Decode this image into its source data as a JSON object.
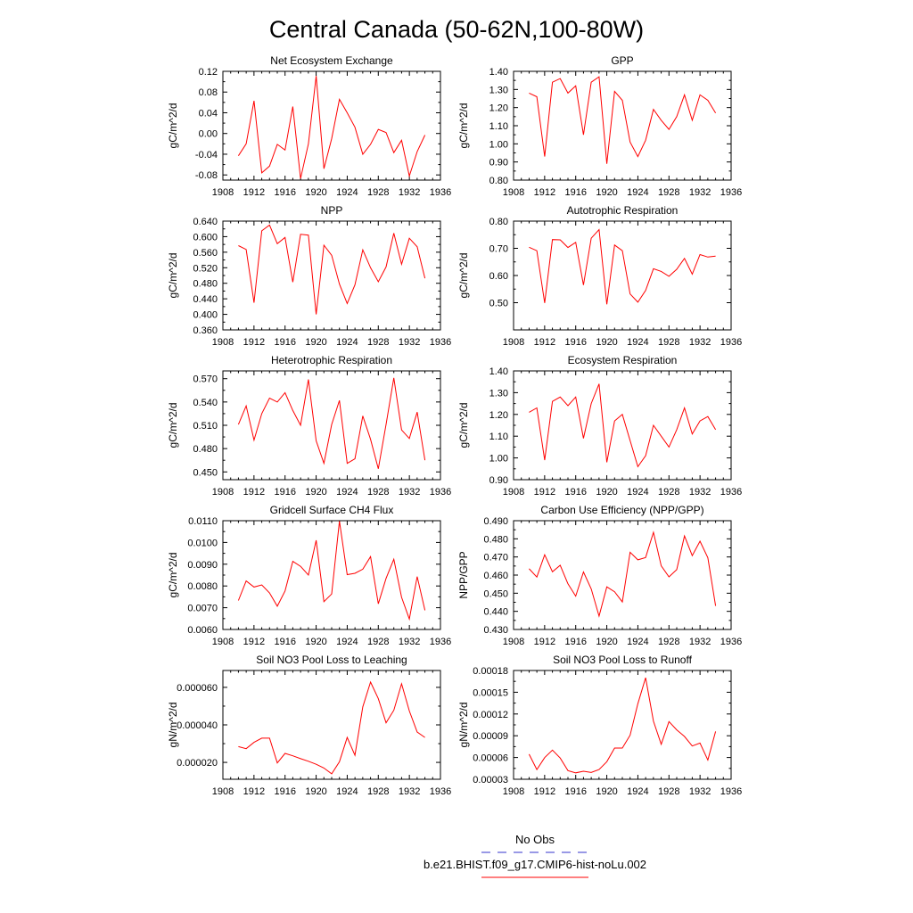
{
  "figure": {
    "title": "Central Canada (50-62N,100-80W)",
    "legend": [
      {
        "label": "No Obs",
        "color": "#3333cc",
        "dash": true
      },
      {
        "label": "b.e21.BHIST.f09_g17.CMIP6-hist-noLu.002",
        "color": "#ff0000",
        "dash": false
      }
    ],
    "series_color": "#ff0000"
  },
  "chart_data": [
    {
      "type": "line",
      "title": "Net Ecosystem Exchange",
      "ylabel": "gC/m^2/d",
      "xlim": [
        1908,
        1936
      ],
      "ylim": [
        -0.09,
        0.12
      ],
      "xticks": [
        1908,
        1912,
        1916,
        1920,
        1924,
        1928,
        1932,
        1936
      ],
      "yticks": [
        -0.08,
        -0.04,
        0.0,
        0.04,
        0.08,
        0.12
      ],
      "yticklabels": [
        "-0.08",
        "-0.04",
        "0.00",
        "0.04",
        "0.08",
        "0.12"
      ],
      "x": [
        1910,
        1911,
        1912,
        1913,
        1914,
        1915,
        1916,
        1917,
        1918,
        1919,
        1920,
        1921,
        1922,
        1923,
        1924,
        1925,
        1926,
        1927,
        1928,
        1929,
        1930,
        1931,
        1932,
        1933,
        1934
      ],
      "y": [
        -0.043,
        -0.02,
        0.063,
        -0.076,
        -0.063,
        -0.021,
        -0.032,
        0.052,
        -0.087,
        -0.02,
        0.111,
        -0.068,
        -0.01,
        0.066,
        0.04,
        0.012,
        -0.04,
        -0.021,
        0.008,
        0.002,
        -0.037,
        -0.013,
        -0.082,
        -0.035,
        -0.003
      ]
    },
    {
      "type": "line",
      "title": "GPP",
      "ylabel": "gC/m^2/d",
      "xlim": [
        1908,
        1936
      ],
      "ylim": [
        0.8,
        1.4
      ],
      "xticks": [
        1908,
        1912,
        1916,
        1920,
        1924,
        1928,
        1932,
        1936
      ],
      "yticks": [
        0.8,
        0.9,
        1.0,
        1.1,
        1.2,
        1.3,
        1.4
      ],
      "yticklabels": [
        "0.80",
        "0.90",
        "1.00",
        "1.10",
        "1.20",
        "1.30",
        "1.40"
      ],
      "x": [
        1910,
        1911,
        1912,
        1913,
        1914,
        1915,
        1916,
        1917,
        1918,
        1919,
        1920,
        1921,
        1922,
        1923,
        1924,
        1925,
        1926,
        1927,
        1928,
        1929,
        1930,
        1931,
        1932,
        1933,
        1934
      ],
      "y": [
        1.28,
        1.26,
        0.93,
        1.34,
        1.36,
        1.28,
        1.32,
        1.05,
        1.34,
        1.37,
        0.89,
        1.29,
        1.24,
        1.01,
        0.93,
        1.02,
        1.19,
        1.13,
        1.08,
        1.15,
        1.27,
        1.13,
        1.27,
        1.24,
        1.17
      ]
    },
    {
      "type": "line",
      "title": "NPP",
      "ylabel": "gC/m^2/d",
      "xlim": [
        1908,
        1936
      ],
      "ylim": [
        0.36,
        0.64
      ],
      "xticks": [
        1908,
        1912,
        1916,
        1920,
        1924,
        1928,
        1932,
        1936
      ],
      "yticks": [
        0.36,
        0.4,
        0.44,
        0.48,
        0.52,
        0.56,
        0.6,
        0.64
      ],
      "yticklabels": [
        "0.360",
        "0.400",
        "0.440",
        "0.480",
        "0.520",
        "0.560",
        "0.600",
        "0.640"
      ],
      "x": [
        1910,
        1911,
        1912,
        1913,
        1914,
        1915,
        1916,
        1917,
        1918,
        1919,
        1920,
        1921,
        1922,
        1923,
        1924,
        1925,
        1926,
        1927,
        1928,
        1929,
        1930,
        1931,
        1932,
        1933,
        1934
      ],
      "y": [
        0.577,
        0.567,
        0.43,
        0.615,
        0.63,
        0.582,
        0.598,
        0.483,
        0.606,
        0.604,
        0.4,
        0.578,
        0.552,
        0.478,
        0.428,
        0.476,
        0.566,
        0.52,
        0.484,
        0.522,
        0.609,
        0.529,
        0.596,
        0.574,
        0.493
      ]
    },
    {
      "type": "line",
      "title": "Autotrophic Respiration",
      "ylabel": "gC/m^2/d",
      "xlim": [
        1908,
        1936
      ],
      "ylim": [
        0.4,
        0.8
      ],
      "xticks": [
        1908,
        1912,
        1916,
        1920,
        1924,
        1928,
        1932,
        1936
      ],
      "yticks": [
        0.5,
        0.6,
        0.7,
        0.8
      ],
      "yticklabels": [
        "0.50",
        "0.60",
        "0.70",
        "0.80"
      ],
      "x": [
        1910,
        1911,
        1912,
        1913,
        1914,
        1915,
        1916,
        1917,
        1918,
        1919,
        1920,
        1921,
        1922,
        1923,
        1924,
        1925,
        1926,
        1927,
        1928,
        1929,
        1930,
        1931,
        1932,
        1933,
        1934
      ],
      "y": [
        0.704,
        0.691,
        0.499,
        0.732,
        0.731,
        0.703,
        0.722,
        0.565,
        0.737,
        0.769,
        0.494,
        0.712,
        0.691,
        0.532,
        0.502,
        0.545,
        0.625,
        0.615,
        0.597,
        0.623,
        0.663,
        0.605,
        0.677,
        0.668,
        0.671
      ]
    },
    {
      "type": "line",
      "title": "Heterotrophic Respiration",
      "ylabel": "gC/m^2/d",
      "xlim": [
        1908,
        1936
      ],
      "ylim": [
        0.44,
        0.58
      ],
      "xticks": [
        1908,
        1912,
        1916,
        1920,
        1924,
        1928,
        1932,
        1936
      ],
      "yticks": [
        0.45,
        0.48,
        0.51,
        0.54,
        0.57
      ],
      "yticklabels": [
        "0.450",
        "0.480",
        "0.510",
        "0.540",
        "0.570"
      ],
      "x": [
        1910,
        1911,
        1912,
        1913,
        1914,
        1915,
        1916,
        1917,
        1918,
        1919,
        1920,
        1921,
        1922,
        1923,
        1924,
        1925,
        1926,
        1927,
        1928,
        1929,
        1930,
        1931,
        1932,
        1933,
        1934
      ],
      "y": [
        0.511,
        0.535,
        0.491,
        0.525,
        0.545,
        0.54,
        0.552,
        0.529,
        0.51,
        0.569,
        0.49,
        0.461,
        0.511,
        0.542,
        0.461,
        0.467,
        0.522,
        0.492,
        0.454,
        0.511,
        0.571,
        0.504,
        0.493,
        0.527,
        0.465
      ]
    },
    {
      "type": "line",
      "title": "Ecosystem Respiration",
      "ylabel": "gC/m^2/d",
      "xlim": [
        1908,
        1936
      ],
      "ylim": [
        0.9,
        1.4
      ],
      "xticks": [
        1908,
        1912,
        1916,
        1920,
        1924,
        1928,
        1932,
        1936
      ],
      "yticks": [
        0.9,
        1.0,
        1.1,
        1.2,
        1.3,
        1.4
      ],
      "yticklabels": [
        "0.90",
        "1.00",
        "1.10",
        "1.20",
        "1.30",
        "1.40"
      ],
      "x": [
        1910,
        1911,
        1912,
        1913,
        1914,
        1915,
        1916,
        1917,
        1918,
        1919,
        1920,
        1921,
        1922,
        1923,
        1924,
        1925,
        1926,
        1927,
        1928,
        1929,
        1930,
        1931,
        1932,
        1933,
        1934
      ],
      "y": [
        1.21,
        1.23,
        0.99,
        1.26,
        1.28,
        1.24,
        1.28,
        1.09,
        1.25,
        1.34,
        0.98,
        1.17,
        1.2,
        1.08,
        0.96,
        1.01,
        1.15,
        1.1,
        1.05,
        1.13,
        1.23,
        1.11,
        1.17,
        1.19,
        1.13
      ]
    },
    {
      "type": "line",
      "title": "Gridcell Surface CH4 Flux",
      "ylabel": "gC/m^2/d",
      "xlim": [
        1908,
        1936
      ],
      "ylim": [
        0.006,
        0.011
      ],
      "xticks": [
        1908,
        1912,
        1916,
        1920,
        1924,
        1928,
        1932,
        1936
      ],
      "yticks": [
        0.006,
        0.007,
        0.008,
        0.009,
        0.01,
        0.011
      ],
      "yticklabels": [
        "0.0060",
        "0.0070",
        "0.0080",
        "0.0090",
        "0.0100",
        "0.0110"
      ],
      "x": [
        1910,
        1911,
        1912,
        1913,
        1914,
        1915,
        1916,
        1917,
        1918,
        1919,
        1920,
        1921,
        1922,
        1923,
        1924,
        1925,
        1926,
        1927,
        1928,
        1929,
        1930,
        1931,
        1932,
        1933,
        1934
      ],
      "y": [
        0.00733,
        0.00823,
        0.00795,
        0.00805,
        0.00768,
        0.00707,
        0.00777,
        0.00913,
        0.0089,
        0.0085,
        0.0101,
        0.00728,
        0.00763,
        0.01098,
        0.00852,
        0.00858,
        0.00877,
        0.00935,
        0.00718,
        0.00835,
        0.00923,
        0.00748,
        0.00648,
        0.00843,
        0.00688
      ]
    },
    {
      "type": "line",
      "title": "Carbon Use Efficiency (NPP/GPP)",
      "ylabel": "NPP/GPP",
      "xlim": [
        1908,
        1936
      ],
      "ylim": [
        0.43,
        0.49
      ],
      "xticks": [
        1908,
        1912,
        1916,
        1920,
        1924,
        1928,
        1932,
        1936
      ],
      "yticks": [
        0.43,
        0.44,
        0.45,
        0.46,
        0.47,
        0.48,
        0.49
      ],
      "yticklabels": [
        "0.430",
        "0.440",
        "0.450",
        "0.460",
        "0.470",
        "0.480",
        "0.490"
      ],
      "x": [
        1910,
        1911,
        1912,
        1913,
        1914,
        1915,
        1916,
        1917,
        1918,
        1919,
        1920,
        1921,
        1922,
        1923,
        1924,
        1925,
        1926,
        1927,
        1928,
        1929,
        1930,
        1931,
        1932,
        1933,
        1934
      ],
      "y": [
        0.4635,
        0.4589,
        0.4712,
        0.4618,
        0.4654,
        0.4552,
        0.4484,
        0.4617,
        0.4524,
        0.4374,
        0.4535,
        0.4508,
        0.4452,
        0.4726,
        0.4684,
        0.4697,
        0.4836,
        0.4651,
        0.459,
        0.463,
        0.4816,
        0.4707,
        0.4787,
        0.4696,
        0.443
      ]
    },
    {
      "type": "line",
      "title": "Soil NO3 Pool Loss to Leaching",
      "ylabel": "gN/m^2/d",
      "xlim": [
        1908,
        1936
      ],
      "ylim": [
        1.1e-05,
        6.9e-05
      ],
      "xticks": [
        1908,
        1912,
        1916,
        1920,
        1924,
        1928,
        1932,
        1936
      ],
      "yticks": [
        2e-05,
        4e-05,
        6e-05
      ],
      "yticklabels": [
        "0.000020",
        "0.000040",
        "0.000060"
      ],
      "x": [
        1910,
        1911,
        1912,
        1913,
        1914,
        1915,
        1916,
        1917,
        1918,
        1919,
        1920,
        1921,
        1922,
        1923,
        1924,
        1925,
        1926,
        1927,
        1928,
        1929,
        1930,
        1931,
        1932,
        1933,
        1934
      ],
      "y": [
        2.84e-05,
        2.73e-05,
        3.07e-05,
        3.29e-05,
        3.29e-05,
        1.97e-05,
        2.48e-05,
        2.35e-05,
        2.2e-05,
        2.06e-05,
        1.9e-05,
        1.7e-05,
        1.39e-05,
        2.03e-05,
        3.33e-05,
        2.38e-05,
        4.96e-05,
        6.28e-05,
        5.4e-05,
        4.11e-05,
        4.78e-05,
        6.19e-05,
        4.74e-05,
        3.62e-05,
        3.33e-05
      ]
    },
    {
      "type": "line",
      "title": "Soil NO3 Pool Loss to Runoff",
      "ylabel": "gN/m^2/d",
      "xlim": [
        1908,
        1936
      ],
      "ylim": [
        3e-05,
        0.00018
      ],
      "xticks": [
        1908,
        1912,
        1916,
        1920,
        1924,
        1928,
        1932,
        1936
      ],
      "yticks": [
        3e-05,
        6e-05,
        9e-05,
        0.00012,
        0.00015,
        0.00018
      ],
      "yticklabels": [
        "0.00003",
        "0.00006",
        "0.00009",
        "0.00012",
        "0.00015",
        "0.00018"
      ],
      "x": [
        1910,
        1911,
        1912,
        1913,
        1914,
        1915,
        1916,
        1917,
        1918,
        1919,
        1920,
        1921,
        1922,
        1923,
        1924,
        1925,
        1926,
        1927,
        1928,
        1929,
        1930,
        1931,
        1932,
        1933,
        1934
      ],
      "y": [
        6.45e-05,
        4.34e-05,
        5.99e-05,
        7.02e-05,
        5.93e-05,
        4.19e-05,
        3.88e-05,
        4.11e-05,
        3.94e-05,
        4.34e-05,
        5.42e-05,
        7.3e-05,
        7.3e-05,
        9.07e-05,
        0.0001341,
        0.00017,
        0.0001101,
        7.82e-05,
        0.0001095,
        9.81e-05,
        8.9e-05,
        7.59e-05,
        7.99e-05,
        5.65e-05,
        9.59e-05
      ]
    }
  ]
}
